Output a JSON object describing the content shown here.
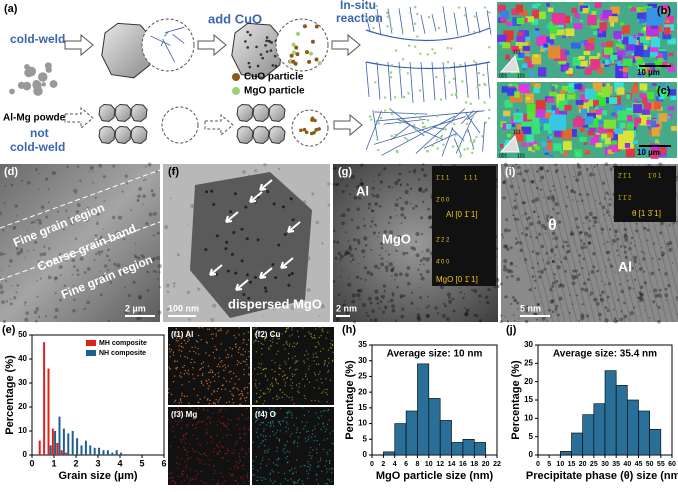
{
  "panels": {
    "a": {
      "label": "(a)",
      "add": "add CuO",
      "reaction": [
        "In-situ",
        "reaction"
      ],
      "cold": "cold-weld",
      "not_cold": [
        "not",
        "cold-weld"
      ],
      "powder": "Al-Mg powder",
      "cuo": "CuO particle",
      "mgo": "MgO particle"
    },
    "b": {
      "label": "(b)",
      "scale": "10 µm",
      "ipf": [
        "111",
        "001",
        "101"
      ]
    },
    "c": {
      "label": "(c)",
      "scale": "10 µm",
      "ipf": [
        "111",
        "001",
        "101"
      ]
    },
    "d": {
      "label": "(d)",
      "regions": [
        "Fine grain region",
        "Coarse grain band",
        "Fine grain region"
      ],
      "scale": "2 µm"
    },
    "f": {
      "label": "(f)",
      "scale": "100 nm",
      "caption": "dispersed MgO"
    },
    "g": {
      "label": "(g)",
      "phases": [
        "Al",
        "MgO"
      ],
      "scale": "2 nm",
      "spots": [
        "1̄ 1 1",
        "1 1 1",
        "2̄ 0 0",
        "2̄ 2 2",
        "4̄ 0 0"
      ],
      "saed": [
        "Al [0 1̄ 1]",
        "MgO [0 1̄ 1]"
      ]
    },
    "i": {
      "label": "(i)",
      "phases": [
        "θ",
        "Al"
      ],
      "scale": "5 nm",
      "spots": [
        "2̄ 1̄ 1",
        "1̄ 0 1",
        "1̄ 1̄ 2"
      ],
      "saed": "θ [1 3̄ 1]"
    },
    "maps": [
      "(f1) Al",
      "(f2) Cu",
      "(f3) Mg",
      "(f4) O"
    ]
  },
  "chart_data": [
    {
      "type": "bar",
      "panel": "(e)",
      "x_label": "Grain size (µm)",
      "y_label": "Percentage (%)",
      "x": [
        0.4,
        0.6,
        0.8,
        1.0,
        1.2,
        1.4,
        1.6,
        1.8,
        2.0,
        2.2,
        2.4,
        2.6,
        2.8,
        3.0,
        3.2,
        3.4,
        3.6,
        3.8,
        4.0
      ],
      "series": [
        {
          "name": "MH composite",
          "color": "#e0201b",
          "values": [
            6,
            47,
            36,
            11,
            5,
            2,
            1,
            null,
            null,
            null,
            null,
            null,
            null,
            null,
            null,
            null,
            null,
            null,
            null
          ]
        },
        {
          "name": "NH composite",
          "color": "#1f5f8b",
          "values": [
            null,
            null,
            4,
            10,
            16,
            11,
            9,
            10,
            7,
            4,
            6,
            4,
            3,
            3,
            2,
            2,
            1,
            2,
            1
          ]
        }
      ],
      "xlim": [
        0,
        6
      ],
      "xticks": [
        0,
        1,
        2,
        3,
        4,
        5,
        6
      ],
      "ylim": [
        0,
        50
      ],
      "yticks": [
        0,
        10,
        20,
        30,
        40,
        50
      ],
      "legend": "top-right"
    },
    {
      "type": "histogram",
      "panel": "(h)",
      "annotation": "Average size: 10 nm",
      "x_label": "MgO particle size (nm)",
      "y_label": "Percentage (%)",
      "bins": [
        2,
        4,
        6,
        8,
        10,
        12,
        14,
        16,
        18,
        20
      ],
      "values": [
        1,
        10,
        14,
        29,
        18,
        11,
        4,
        5,
        4
      ],
      "color": "#2a6f97",
      "xlim": [
        0,
        22
      ],
      "xticks": [
        0,
        2,
        4,
        6,
        8,
        10,
        12,
        14,
        16,
        18,
        20,
        22
      ],
      "ylim": [
        0,
        35
      ],
      "yticks": [
        0,
        5,
        10,
        15,
        20,
        25,
        30,
        35
      ]
    },
    {
      "type": "histogram",
      "panel": "(j)",
      "annotation": "Average size: 35.4 nm",
      "x_label": "Precipitate phase (θ) size (nm)",
      "y_label": "Percentage (%)",
      "bins": [
        10,
        15,
        20,
        25,
        30,
        35,
        40,
        45,
        50,
        55
      ],
      "values": [
        1,
        6,
        11,
        14,
        23,
        19,
        15,
        12,
        7
      ],
      "color": "#2a6f97",
      "xlim": [
        0,
        60
      ],
      "xticks": [
        0,
        5,
        10,
        15,
        20,
        25,
        30,
        35,
        40,
        45,
        50,
        55,
        60
      ],
      "ylim": [
        0,
        30
      ],
      "yticks": [
        0,
        5,
        10,
        15,
        20,
        25,
        30
      ]
    }
  ]
}
